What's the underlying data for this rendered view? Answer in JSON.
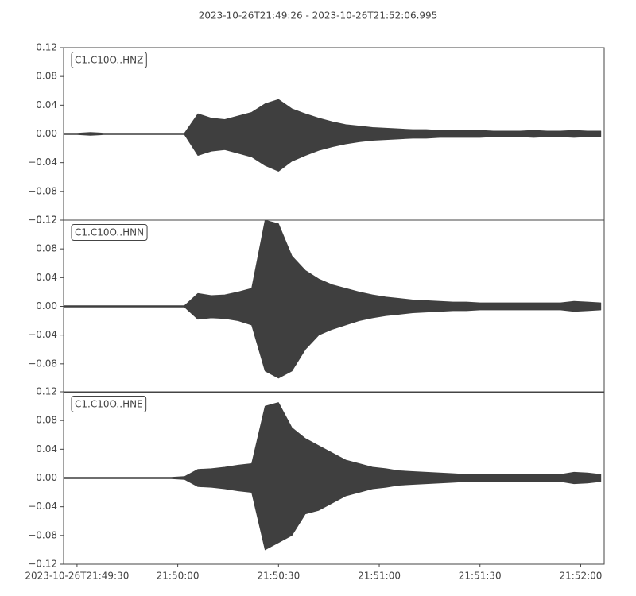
{
  "title": "2023-10-26T21:49:26  -  2023-10-26T21:52:06.995",
  "chart_data": [
    {
      "type": "area",
      "label": "C1.C10O..HNZ",
      "color": "#3f3f3f",
      "x": [
        0,
        4,
        8,
        12,
        16,
        20,
        24,
        28,
        32,
        36,
        40,
        44,
        48,
        52,
        56,
        60,
        64,
        68,
        72,
        76,
        80,
        84,
        88,
        92,
        96,
        100,
        104,
        108,
        112,
        116,
        120,
        124,
        128,
        132,
        136,
        140,
        144,
        148,
        152,
        156,
        160
      ],
      "upper": [
        0.001,
        0.001,
        0.002,
        0.001,
        0.001,
        0.001,
        0.001,
        0.001,
        0.001,
        0.001,
        0.028,
        0.022,
        0.02,
        0.025,
        0.03,
        0.042,
        0.048,
        0.035,
        0.028,
        0.022,
        0.017,
        0.013,
        0.011,
        0.009,
        0.008,
        0.007,
        0.006,
        0.006,
        0.005,
        0.005,
        0.005,
        0.005,
        0.004,
        0.004,
        0.004,
        0.005,
        0.004,
        0.004,
        0.005,
        0.004,
        0.004
      ],
      "lower": [
        -0.001,
        -0.001,
        -0.002,
        -0.001,
        -0.001,
        -0.001,
        -0.001,
        -0.001,
        -0.001,
        -0.001,
        -0.03,
        -0.024,
        -0.022,
        -0.027,
        -0.032,
        -0.044,
        -0.052,
        -0.038,
        -0.03,
        -0.023,
        -0.018,
        -0.014,
        -0.011,
        -0.009,
        -0.008,
        -0.007,
        -0.006,
        -0.006,
        -0.005,
        -0.005,
        -0.005,
        -0.005,
        -0.004,
        -0.004,
        -0.004,
        -0.005,
        -0.004,
        -0.004,
        -0.005,
        -0.004,
        -0.004
      ],
      "ylim": [
        -0.12,
        0.12
      ],
      "yticks": [
        {
          "value": -0.12,
          "label": "−0.12"
        },
        {
          "value": -0.08,
          "label": "−0.08"
        },
        {
          "value": -0.04,
          "label": "−0.04"
        },
        {
          "value": 0,
          "label": "0.00"
        },
        0.04,
        0.08,
        0.12
      ],
      "xlim": [
        0,
        160.995
      ]
    },
    {
      "type": "area",
      "label": "C1.C10O..HNN",
      "color": "#3f3f3f",
      "x": [
        0,
        4,
        8,
        12,
        16,
        20,
        24,
        28,
        32,
        36,
        40,
        44,
        48,
        52,
        56,
        60,
        64,
        68,
        72,
        76,
        80,
        84,
        88,
        92,
        96,
        100,
        104,
        108,
        112,
        116,
        120,
        124,
        128,
        132,
        136,
        140,
        144,
        148,
        152,
        156,
        160
      ],
      "upper": [
        0.001,
        0.001,
        0.001,
        0.001,
        0.001,
        0.001,
        0.001,
        0.001,
        0.001,
        0.001,
        0.018,
        0.015,
        0.016,
        0.02,
        0.025,
        0.12,
        0.115,
        0.07,
        0.05,
        0.038,
        0.03,
        0.025,
        0.02,
        0.016,
        0.013,
        0.011,
        0.009,
        0.008,
        0.007,
        0.006,
        0.006,
        0.005,
        0.005,
        0.005,
        0.005,
        0.005,
        0.005,
        0.005,
        0.007,
        0.006,
        0.005
      ],
      "lower": [
        -0.001,
        -0.001,
        -0.001,
        -0.001,
        -0.001,
        -0.001,
        -0.001,
        -0.001,
        -0.001,
        -0.001,
        -0.018,
        -0.016,
        -0.017,
        -0.02,
        -0.026,
        -0.09,
        -0.1,
        -0.09,
        -0.06,
        -0.04,
        -0.032,
        -0.026,
        -0.02,
        -0.016,
        -0.013,
        -0.011,
        -0.009,
        -0.008,
        -0.007,
        -0.006,
        -0.006,
        -0.005,
        -0.005,
        -0.005,
        -0.005,
        -0.005,
        -0.005,
        -0.005,
        -0.007,
        -0.006,
        -0.005
      ],
      "ylim": [
        -0.12,
        0.12
      ],
      "yticks": [
        {
          "value": -0.08,
          "label": "−0.08"
        },
        {
          "value": -0.04,
          "label": "−0.04"
        },
        {
          "value": 0,
          "label": "0.00"
        },
        0.04,
        0.08,
        0.12
      ],
      "xlim": [
        0,
        160.995
      ]
    },
    {
      "type": "area",
      "label": "C1.C10O..HNE",
      "color": "#3f3f3f",
      "x": [
        0,
        4,
        8,
        12,
        16,
        20,
        24,
        28,
        32,
        36,
        40,
        44,
        48,
        52,
        56,
        60,
        64,
        68,
        72,
        76,
        80,
        84,
        88,
        92,
        96,
        100,
        104,
        108,
        112,
        116,
        120,
        124,
        128,
        132,
        136,
        140,
        144,
        148,
        152,
        156,
        160
      ],
      "upper": [
        0.001,
        0.001,
        0.001,
        0.001,
        0.001,
        0.001,
        0.001,
        0.001,
        0.001,
        0.002,
        0.012,
        0.013,
        0.015,
        0.018,
        0.02,
        0.1,
        0.105,
        0.07,
        0.055,
        0.045,
        0.035,
        0.025,
        0.02,
        0.015,
        0.013,
        0.01,
        0.009,
        0.008,
        0.007,
        0.006,
        0.005,
        0.005,
        0.005,
        0.005,
        0.005,
        0.005,
        0.005,
        0.005,
        0.008,
        0.007,
        0.005
      ],
      "lower": [
        -0.001,
        -0.001,
        -0.001,
        -0.001,
        -0.001,
        -0.001,
        -0.001,
        -0.001,
        -0.001,
        -0.002,
        -0.012,
        -0.013,
        -0.015,
        -0.018,
        -0.02,
        -0.1,
        -0.09,
        -0.08,
        -0.05,
        -0.045,
        -0.035,
        -0.025,
        -0.02,
        -0.015,
        -0.013,
        -0.01,
        -0.009,
        -0.008,
        -0.007,
        -0.006,
        -0.005,
        -0.005,
        -0.005,
        -0.005,
        -0.005,
        -0.005,
        -0.005,
        -0.005,
        -0.008,
        -0.007,
        -0.005
      ],
      "ylim": [
        -0.12,
        0.12
      ],
      "yticks": [
        {
          "value": -0.12,
          "label": "−0.12"
        },
        {
          "value": -0.08,
          "label": "−0.08"
        },
        {
          "value": -0.04,
          "label": "−0.04"
        },
        {
          "value": 0,
          "label": "0.00"
        },
        0.04,
        0.08,
        0.12
      ],
      "xlim": [
        0,
        160.995
      ],
      "xticks": [
        {
          "value": 4,
          "label": "2023-10-26T21:49:30"
        },
        {
          "value": 34,
          "label": "21:50:00"
        },
        {
          "value": 64,
          "label": "21:50:30"
        },
        {
          "value": 94,
          "label": "21:51:00"
        },
        {
          "value": 124,
          "label": "21:51:30"
        },
        {
          "value": 154,
          "label": "21:52:00"
        }
      ]
    }
  ]
}
